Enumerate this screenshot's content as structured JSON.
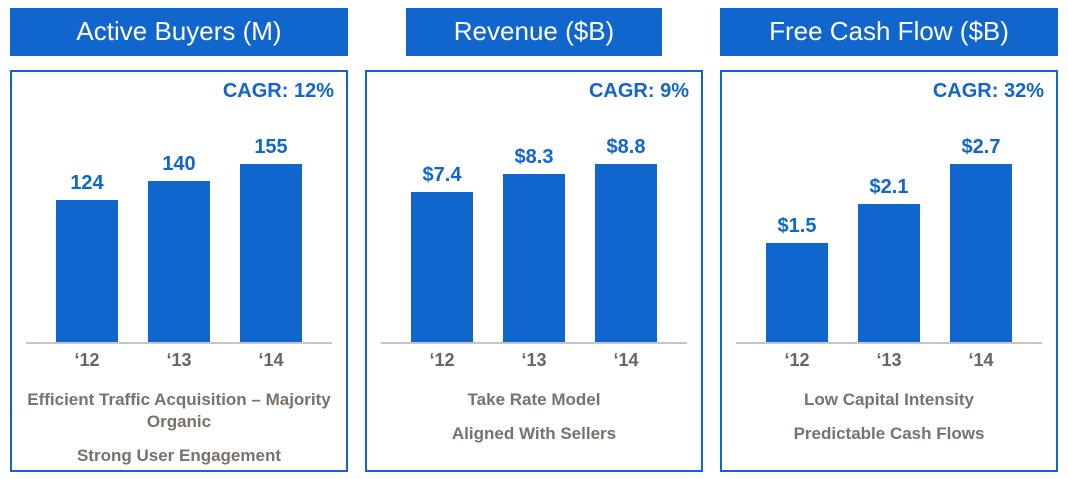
{
  "colors": {
    "accent_blue": "#1066CC",
    "bar_blue": "#1066CC",
    "note_text": "#7B716B",
    "axis_label": "#666666",
    "axis_line": "#C6C6C6"
  },
  "panels": [
    {
      "title": "Active Buyers (M)",
      "cagr": "CAGR: 12%",
      "notes": [
        "Efficient Traffic Acquisition – Majority Organic",
        "Strong User Engagement"
      ]
    },
    {
      "title": "Revenue ($B)",
      "cagr": "CAGR: 9%",
      "notes": [
        "Take Rate Model",
        "Aligned With Sellers"
      ]
    },
    {
      "title": "Free Cash Flow ($B)",
      "cagr": "CAGR: 32%",
      "notes": [
        "Low Capital Intensity",
        "Predictable Cash Flows"
      ]
    }
  ],
  "chart_data": [
    {
      "type": "bar",
      "title": "Active Buyers (M)",
      "categories": [
        "‘12",
        "‘13",
        "‘14"
      ],
      "values": [
        124,
        140,
        155
      ],
      "value_labels": [
        "124",
        "140",
        "155"
      ],
      "annotation": "CAGR: 12%",
      "ylim": [
        0,
        160
      ],
      "grid": false,
      "legend": "none"
    },
    {
      "type": "bar",
      "title": "Revenue ($B)",
      "categories": [
        "‘12",
        "‘13",
        "‘14"
      ],
      "values": [
        7.4,
        8.3,
        8.8
      ],
      "value_labels": [
        "$7.4",
        "$8.3",
        "$8.8"
      ],
      "annotation": "CAGR: 9%",
      "ylim": [
        0,
        9
      ],
      "grid": false,
      "legend": "none"
    },
    {
      "type": "bar",
      "title": "Free Cash Flow ($B)",
      "categories": [
        "‘12",
        "‘13",
        "‘14"
      ],
      "values": [
        1.5,
        2.1,
        2.7
      ],
      "value_labels": [
        "$1.5",
        "$2.1",
        "$2.7"
      ],
      "annotation": "CAGR: 32%",
      "ylim": [
        0,
        3
      ],
      "grid": false,
      "legend": "none"
    }
  ]
}
